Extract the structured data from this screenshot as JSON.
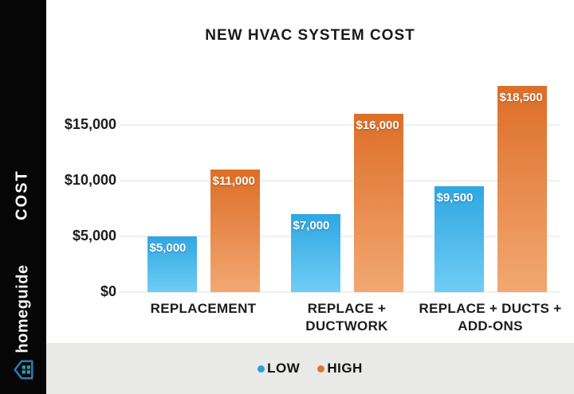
{
  "title": "NEW HVAC SYSTEM COST",
  "sidebar": {
    "vertical_label": "COST",
    "brand": "homeguide",
    "bg": "#060606"
  },
  "colors": {
    "low_top": "#2fa7e2",
    "low_bottom": "#6fcdf5",
    "high_top": "#dd6e27",
    "high_bottom": "#f2a873",
    "legend_low_dot": "#2b9fd8",
    "legend_high_dot": "#e0762f",
    "grid": "#efefef",
    "legend_bg": "#e9e9e7",
    "house_outline": "#2e7cb8",
    "house_panes": "#2f9aa8"
  },
  "chart_data": {
    "type": "bar",
    "title": "NEW HVAC SYSTEM COST",
    "categories": [
      "REPLACEMENT",
      "REPLACE + DUCTWORK",
      "REPLACE + DUCTS + ADD-ONS"
    ],
    "series": [
      {
        "name": "LOW",
        "values": [
          5000,
          7000,
          9500
        ],
        "labels": [
          "$5,000",
          "$7,000",
          "$9,500"
        ]
      },
      {
        "name": "HIGH",
        "values": [
          11000,
          16000,
          18500
        ],
        "labels": [
          "$11,000",
          "$16,000",
          "$18,500"
        ]
      }
    ],
    "ylabel": "COST",
    "xlabel": "",
    "yticks": [
      0,
      5000,
      10000,
      15000
    ],
    "ytick_labels": [
      "$0",
      "$5,000",
      "$10,000",
      "$15,000"
    ],
    "ylim": [
      0,
      20000
    ],
    "grid": true,
    "legend_position": "bottom"
  },
  "legend": {
    "items": [
      {
        "label": "LOW",
        "color": "#2b9fd8"
      },
      {
        "label": "HIGH",
        "color": "#e0762f"
      }
    ]
  }
}
